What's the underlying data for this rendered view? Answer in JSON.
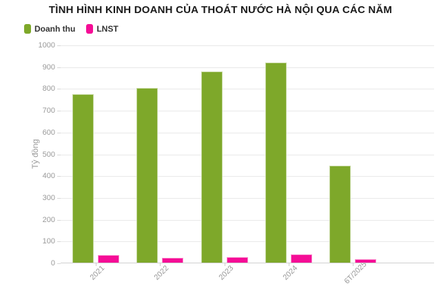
{
  "title": "TÌNH HÌNH KINH DOANH CỦA THOÁT NƯỚC HÀ NỘI QUA CÁC NĂM",
  "legend": {
    "items": [
      {
        "label": "Doanh thu",
        "color": "#7ea82a"
      },
      {
        "label": "LNST",
        "color": "#f50d96"
      }
    ]
  },
  "colors": {
    "revenue_green": "#7ea82a",
    "profit_pink": "#f50d96",
    "axis_text": "#999999",
    "grid": "#e8e8e8"
  },
  "chart_data": {
    "type": "bar",
    "title": "TÌNH HÌNH KINH DOANH CỦA THOÁT NƯỚC HÀ NỘI QUA CÁC NĂM",
    "categories": [
      "2021",
      "2022",
      "2023",
      "2024",
      "6T/2025"
    ],
    "series": [
      {
        "name": "Doanh thu",
        "color": "#7ea82a",
        "values": [
          775,
          806,
          880,
          921,
          449
        ]
      },
      {
        "name": "LNST",
        "color": "#f50d96",
        "values": [
          39,
          25,
          29,
          40,
          20
        ]
      }
    ],
    "xlabel": "",
    "ylabel": "Tỷ đồng",
    "ylim": [
      0,
      1000
    ],
    "ytick_step": 100,
    "ytick_labels": [
      "0",
      "100",
      "200",
      "300",
      "400",
      "500",
      "600",
      "700",
      "800",
      "900",
      "1000"
    ],
    "grid": true,
    "legend_position": "top-left"
  }
}
